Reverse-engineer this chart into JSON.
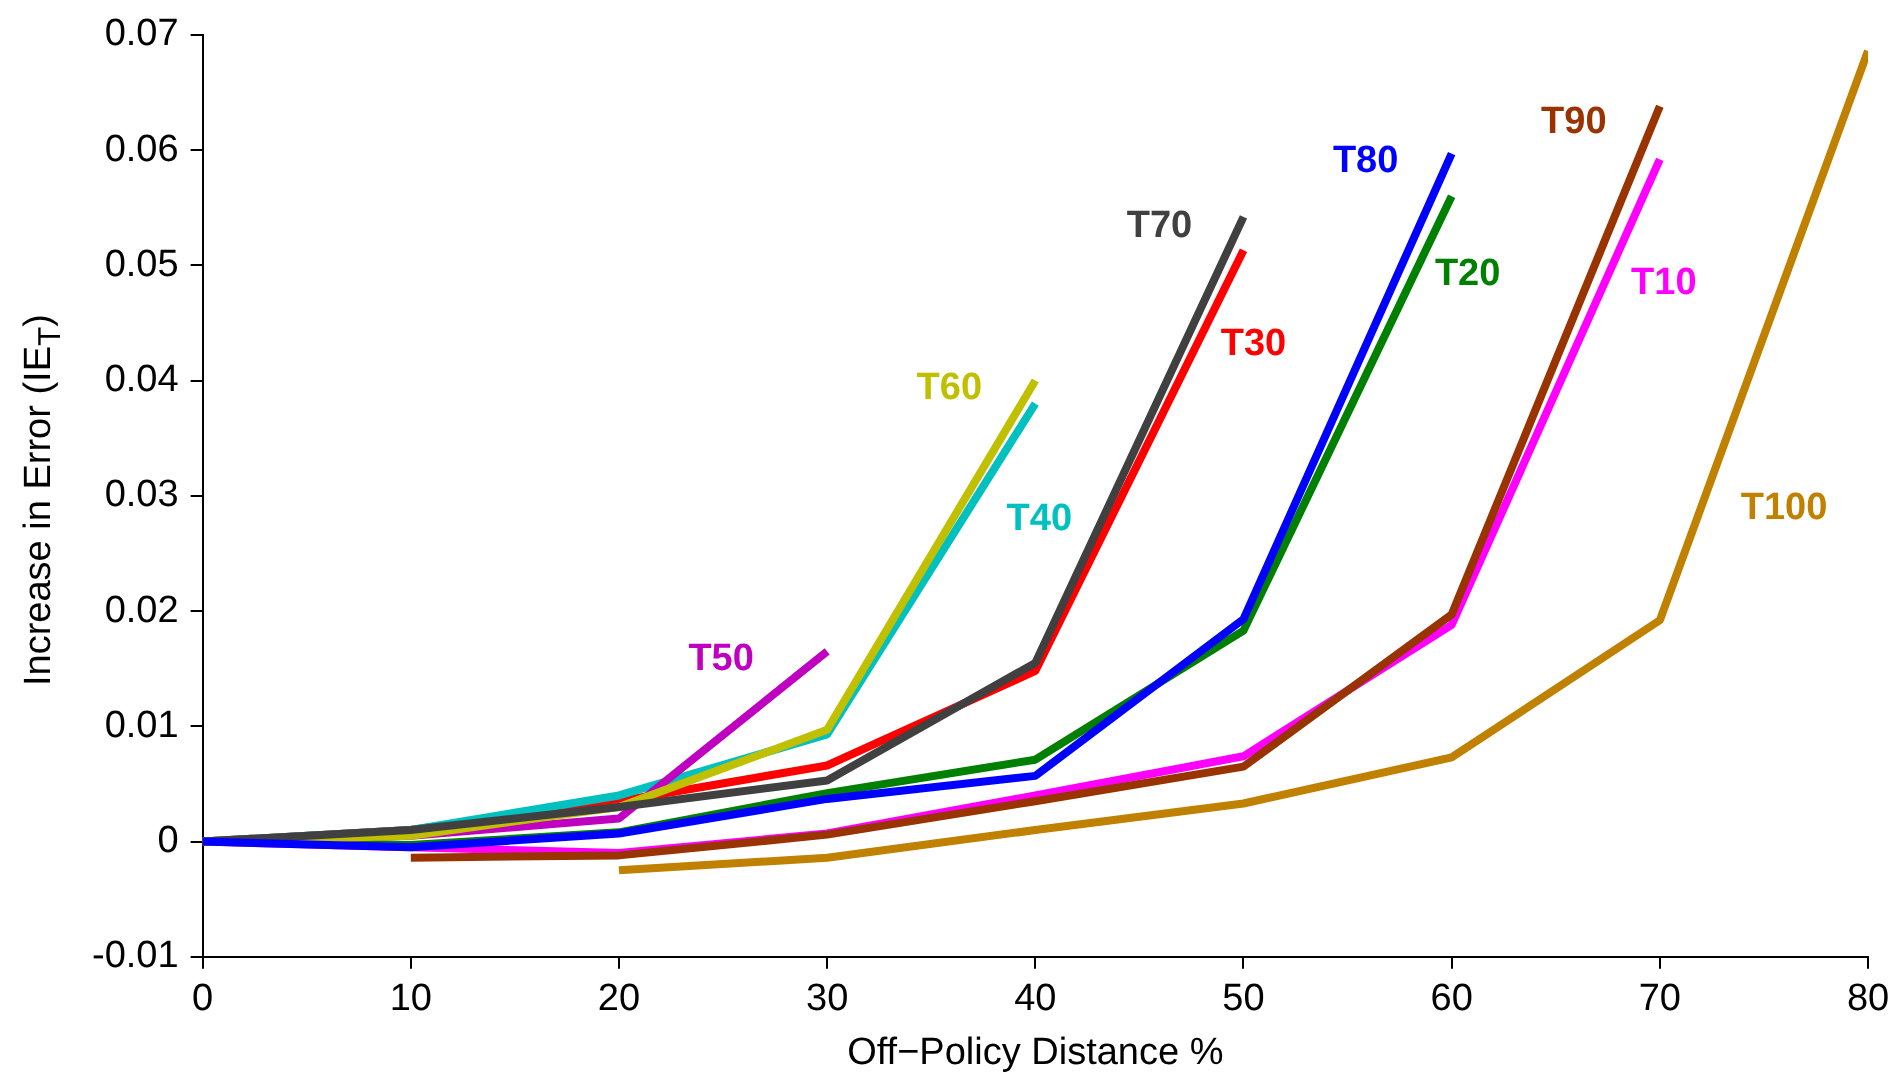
{
  "chart_data": {
    "type": "line",
    "xlabel": "Off−Policy Distance %",
    "ylabel": "Increase in Error (IE$_{T}$)",
    "xlim": [
      0,
      80
    ],
    "xticks": [
      0,
      10,
      20,
      30,
      40,
      50,
      60,
      70,
      80
    ],
    "ylim": [
      -0.01,
      0.07
    ],
    "yticks": [
      -0.01,
      0,
      0.01,
      0.02,
      0.03,
      0.04,
      0.05,
      0.06,
      0.07
    ],
    "grid": false,
    "legend": false,
    "marker": "none",
    "line_style": "solid",
    "series": [
      {
        "name": "T10",
        "color": "#ff00ff",
        "x": [
          0,
          10,
          20,
          30,
          40,
          50,
          60,
          70
        ],
        "values": [
          0,
          -0.0005,
          -0.001,
          0.0007,
          0.004,
          0.0074,
          0.0188,
          0.0592
        ]
      },
      {
        "name": "T20",
        "color": "#008000",
        "x": [
          0,
          10,
          20,
          30,
          40,
          50,
          60
        ],
        "values": [
          0,
          -0.0003,
          0.0008,
          0.0042,
          0.0071,
          0.0183,
          0.056
        ]
      },
      {
        "name": "T30",
        "color": "#ff0000",
        "x": [
          0,
          10,
          20,
          30,
          40,
          50
        ],
        "values": [
          0,
          0.001,
          0.0035,
          0.0066,
          0.0148,
          0.0513
        ]
      },
      {
        "name": "T40",
        "color": "#00c0c0",
        "x": [
          0,
          10,
          20,
          30,
          40
        ],
        "values": [
          0,
          0.001,
          0.004,
          0.0093,
          0.038
        ]
      },
      {
        "name": "T50",
        "color": "#c000c0",
        "x": [
          0,
          10,
          20,
          30
        ],
        "values": [
          0,
          0.0005,
          0.002,
          0.0165
        ]
      },
      {
        "name": "T60",
        "color": "#c0c000",
        "x": [
          0,
          10,
          20,
          30,
          40
        ],
        "values": [
          0,
          0.0005,
          0.003,
          0.0097,
          0.04
        ]
      },
      {
        "name": "T70",
        "color": "#404040",
        "x": [
          0,
          10,
          20,
          30,
          40,
          50
        ],
        "values": [
          0,
          0.001,
          0.003,
          0.0053,
          0.0155,
          0.0542
        ]
      },
      {
        "name": "T80",
        "color": "#0000ff",
        "x": [
          0,
          10,
          20,
          30,
          40,
          50,
          60
        ],
        "values": [
          0,
          -0.0005,
          0.0007,
          0.0037,
          0.0057,
          0.0193,
          0.0597
        ]
      },
      {
        "name": "T90",
        "color": "#993300",
        "x": [
          10,
          20,
          30,
          40,
          50,
          60,
          70
        ],
        "values": [
          -0.0014,
          -0.0012,
          0.0006,
          0.0035,
          0.0065,
          0.0197,
          0.0638
        ]
      },
      {
        "name": "T100",
        "color": "#c08000",
        "x": [
          20,
          30,
          40,
          50,
          60,
          70,
          80
        ],
        "values": [
          -0.0025,
          -0.0014,
          0.001,
          0.0033,
          0.0073,
          0.0192,
          0.0686
        ]
      }
    ]
  }
}
